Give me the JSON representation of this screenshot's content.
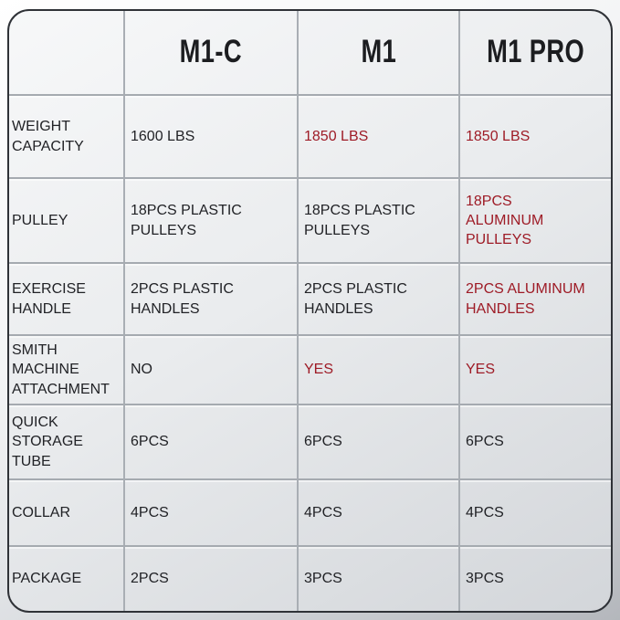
{
  "title": "M1 series comparison table",
  "colors": {
    "highlight_red": "#9E1B26",
    "text_dark": "#212226",
    "grid_line": "#A5AAB0",
    "outer_border": "#2F3237",
    "background_top": "#FFFFFF",
    "background_bottom": "#B4B7BC"
  },
  "chart_data": {
    "type": "table",
    "columns": [
      "",
      "M1-C",
      "M1",
      "M1 PRO"
    ],
    "rows": [
      {
        "feature": "WEIGHT\nCAPACITY",
        "cells": [
          {
            "text": "1600 LBS",
            "highlight": false
          },
          {
            "text": "1850 LBS",
            "highlight": true
          },
          {
            "text": "1850 LBS",
            "highlight": true
          }
        ]
      },
      {
        "feature": "PULLEY",
        "cells": [
          {
            "text": "18PCS PLASTIC\nPULLEYS",
            "highlight": false
          },
          {
            "text": "18PCS PLASTIC\nPULLEYS",
            "highlight": false
          },
          {
            "text": "18PCS\nALUMINUM PULLEYS",
            "highlight": true
          }
        ]
      },
      {
        "feature": "EXERCISE\nHANDLE",
        "cells": [
          {
            "text": "2PCS PLASTIC\nHANDLES",
            "highlight": false
          },
          {
            "text": "2PCS PLASTIC\nHANDLES",
            "highlight": false
          },
          {
            "text": "2PCS ALUMINUM\nHANDLES",
            "highlight": true
          }
        ]
      },
      {
        "feature": "SMITH MACHINE\nATTACHMENT",
        "cells": [
          {
            "text": "NO",
            "highlight": false
          },
          {
            "text": "YES",
            "highlight": true
          },
          {
            "text": "YES",
            "highlight": true
          }
        ]
      },
      {
        "feature": "QUICK\nSTORAGE TUBE",
        "cells": [
          {
            "text": "6PCS",
            "highlight": false
          },
          {
            "text": "6PCS",
            "highlight": false
          },
          {
            "text": "6PCS",
            "highlight": false
          }
        ]
      },
      {
        "feature": "COLLAR",
        "cells": [
          {
            "text": "4PCS",
            "highlight": false
          },
          {
            "text": "4PCS",
            "highlight": false
          },
          {
            "text": "4PCS",
            "highlight": false
          }
        ]
      },
      {
        "feature": "PACKAGE",
        "cells": [
          {
            "text": "2PCS",
            "highlight": false
          },
          {
            "text": "3PCS",
            "highlight": false
          },
          {
            "text": "3PCS",
            "highlight": false
          }
        ]
      }
    ]
  }
}
